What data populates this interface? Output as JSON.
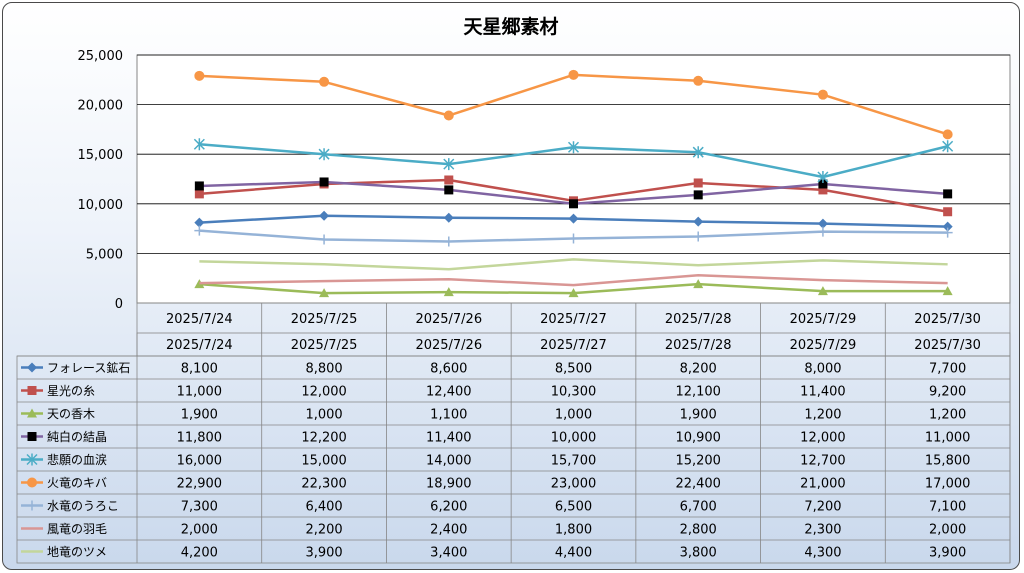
{
  "chart_data": {
    "type": "line",
    "title": "天星郷素材",
    "categories": [
      "2025/7/24",
      "2025/7/25",
      "2025/7/26",
      "2025/7/27",
      "2025/7/28",
      "2025/7/29",
      "2025/7/30"
    ],
    "ylim": [
      0,
      25000
    ],
    "yticks": [
      "0",
      "5,000",
      "10,000",
      "15,000",
      "20,000",
      "25,000"
    ],
    "ytick_values": [
      0,
      5000,
      10000,
      15000,
      20000,
      25000
    ],
    "grid": true,
    "legend": "data-table",
    "series": [
      {
        "name": "フォレース鉱石",
        "color": "#4a7ebb",
        "marker": "diamond",
        "values": [
          8100,
          8800,
          8600,
          8500,
          8200,
          8000,
          7700
        ],
        "labels": [
          "8,100",
          "8,800",
          "8,600",
          "8,500",
          "8,200",
          "8,000",
          "7,700"
        ]
      },
      {
        "name": "星光の糸",
        "color": "#c0504d",
        "marker": "square",
        "values": [
          11000,
          12000,
          12400,
          10300,
          12100,
          11400,
          9200
        ],
        "labels": [
          "11,000",
          "12,000",
          "12,400",
          "10,300",
          "12,100",
          "11,400",
          "9,200"
        ]
      },
      {
        "name": "天の香木",
        "color": "#9bbb59",
        "marker": "triangle",
        "values": [
          1900,
          1000,
          1100,
          1000,
          1900,
          1200,
          1200
        ],
        "labels": [
          "1,900",
          "1,000",
          "1,100",
          "1,000",
          "1,900",
          "1,200",
          "1,200"
        ]
      },
      {
        "name": "純白の結晶",
        "color": "#8064a2",
        "marker": "blacksquare",
        "values": [
          11800,
          12200,
          11400,
          10000,
          10900,
          12000,
          11000
        ],
        "labels": [
          "11,800",
          "12,200",
          "11,400",
          "10,000",
          "10,900",
          "12,000",
          "11,000"
        ]
      },
      {
        "name": "悲願の血涙",
        "color": "#4bacc6",
        "marker": "star",
        "values": [
          16000,
          15000,
          14000,
          15700,
          15200,
          12700,
          15800
        ],
        "labels": [
          "16,000",
          "15,000",
          "14,000",
          "15,700",
          "15,200",
          "12,700",
          "15,800"
        ]
      },
      {
        "name": "火竜のキバ",
        "color": "#f79646",
        "marker": "circle",
        "values": [
          22900,
          22300,
          18900,
          23000,
          22400,
          21000,
          17000
        ],
        "labels": [
          "22,900",
          "22,300",
          "18,900",
          "23,000",
          "22,400",
          "21,000",
          "17,000"
        ]
      },
      {
        "name": "水竜のうろこ",
        "color": "#95b3d7",
        "marker": "plus",
        "values": [
          7300,
          6400,
          6200,
          6500,
          6700,
          7200,
          7100
        ],
        "labels": [
          "7,300",
          "6,400",
          "6,200",
          "6,500",
          "6,700",
          "7,200",
          "7,100"
        ]
      },
      {
        "name": "風竜の羽毛",
        "color": "#d99694",
        "marker": "none",
        "values": [
          2000,
          2200,
          2400,
          1800,
          2800,
          2300,
          2000
        ],
        "labels": [
          "2,000",
          "2,200",
          "2,400",
          "1,800",
          "2,800",
          "2,300",
          "2,000"
        ]
      },
      {
        "name": "地竜のツメ",
        "color": "#c3d69b",
        "marker": "none",
        "values": [
          4200,
          3900,
          3400,
          4400,
          3800,
          4300,
          3900
        ],
        "labels": [
          "4,200",
          "3,900",
          "3,400",
          "4,400",
          "3,800",
          "4,300",
          "3,900"
        ]
      }
    ]
  }
}
